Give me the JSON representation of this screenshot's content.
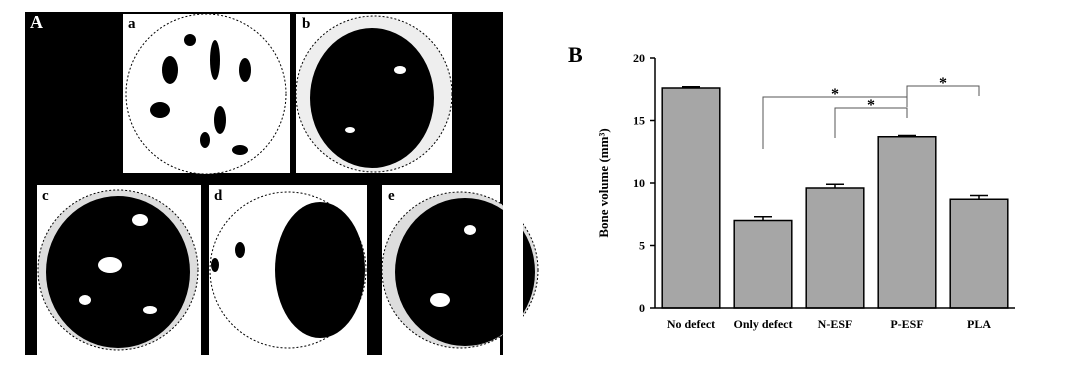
{
  "panel_a": {
    "label": "A",
    "images": [
      "a",
      "b",
      "c",
      "d",
      "e"
    ]
  },
  "chart_data": {
    "type": "bar",
    "panel_label": "B",
    "y_label": "Bone volume (mm³)",
    "categories": [
      "No defect",
      "Only defect",
      "N-ESF",
      "P-ESF",
      "PLA"
    ],
    "values": [
      17.6,
      7.0,
      9.6,
      13.7,
      8.7
    ],
    "errors": [
      0.1,
      0.3,
      0.3,
      0.1,
      0.3
    ],
    "color": "#a6a6a6",
    "ylim": [
      0,
      20
    ],
    "yticks": [
      0,
      5,
      10,
      15,
      20
    ],
    "annotations": [
      "*",
      "*",
      "*"
    ]
  }
}
